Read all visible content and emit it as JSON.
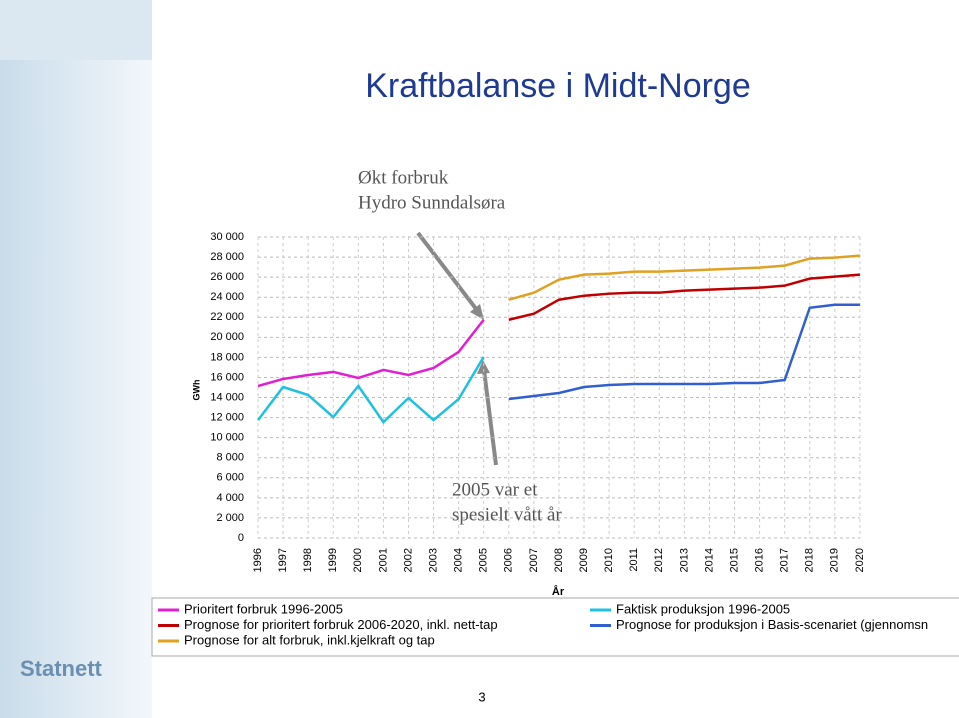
{
  "chart_data": {
    "type": "line",
    "title": "Kraftbalanse i Midt-Norge",
    "y_label": "GWh",
    "x_label": "År",
    "annotations": [
      [
        "Økt forbruk",
        "Hydro Sunndalsøra"
      ],
      [
        "2005 var et",
        "spesielt vått år"
      ]
    ],
    "categories": [
      "1996",
      "1997",
      "1998",
      "1999",
      "2000",
      "2001",
      "2002",
      "2003",
      "2004",
      "2005",
      "2006",
      "2007",
      "2008",
      "2009",
      "2010",
      "2011",
      "2012",
      "2013",
      "2014",
      "2015",
      "2016",
      "2017",
      "2018",
      "2019",
      "2020"
    ],
    "ylim": [
      0,
      30000
    ],
    "yticks": [
      0,
      {
        "value": 2000,
        "label": "2 000"
      },
      {
        "value": 4000,
        "label": "4 000"
      },
      {
        "value": 6000,
        "label": "6 000"
      },
      {
        "value": 8000,
        "label": "8 000"
      },
      {
        "value": 10000,
        "label": "10 000"
      },
      {
        "value": 12000,
        "label": "12 000"
      },
      {
        "value": 14000,
        "label": "14 000"
      },
      {
        "value": 16000,
        "label": "16 000"
      },
      {
        "value": 18000,
        "label": "18 000"
      },
      {
        "value": 20000,
        "label": "20 000"
      },
      {
        "value": 22000,
        "label": "22 000"
      },
      {
        "value": 24000,
        "label": "24 000"
      },
      {
        "value": 26000,
        "label": "26 000"
      },
      {
        "value": 28000,
        "label": "28 000"
      },
      {
        "value": 30000,
        "label": "30 000"
      }
    ],
    "grid": true,
    "series": [
      {
        "name": "Prioritert forbruk 1996-2005",
        "color": "#e020d0",
        "values": [
          15150,
          15850,
          16250,
          16550,
          15950,
          16750,
          16250,
          16950,
          18550,
          21750,
          null,
          null,
          null,
          null,
          null,
          null,
          null,
          null,
          null,
          null,
          null,
          null,
          null,
          null,
          null
        ]
      },
      {
        "name": "Prognose for prioritert forbruk 2006-2020, inkl. nett-tap",
        "color": "#c00000",
        "values": [
          null,
          null,
          null,
          null,
          null,
          null,
          null,
          null,
          null,
          null,
          21750,
          22350,
          23750,
          24150,
          24350,
          24450,
          24450,
          24650,
          24750,
          24850,
          24950,
          25150,
          25850,
          26050,
          26250
        ]
      },
      {
        "name": "Prognose for alt forbruk, inkl.kjelkraft og tap",
        "color": "#e0a020",
        "values": [
          null,
          null,
          null,
          null,
          null,
          null,
          null,
          null,
          null,
          null,
          23750,
          24450,
          25750,
          26250,
          26350,
          26550,
          26550,
          26650,
          26750,
          26850,
          26950,
          27150,
          27850,
          27950,
          28150
        ]
      },
      {
        "name": "Faktisk produksjon 1996-2005",
        "color": "#20c0e0",
        "values": [
          11750,
          15050,
          14250,
          12050,
          15150,
          11550,
          13950,
          11750,
          13850,
          18050,
          null,
          null,
          null,
          null,
          null,
          null,
          null,
          null,
          null,
          null,
          null,
          null,
          null,
          null,
          null
        ]
      },
      {
        "name": "Prognose for produksjon i Basis-scenariet (gjennomsn",
        "color": "#3060d0",
        "values": [
          null,
          null,
          null,
          null,
          null,
          null,
          null,
          null,
          null,
          null,
          13850,
          14150,
          14450,
          15050,
          15250,
          15350,
          15350,
          15350,
          15350,
          15450,
          15450,
          15750,
          22950,
          23250,
          23250
        ]
      }
    ]
  },
  "page_number": "3",
  "logo": "Statnett"
}
